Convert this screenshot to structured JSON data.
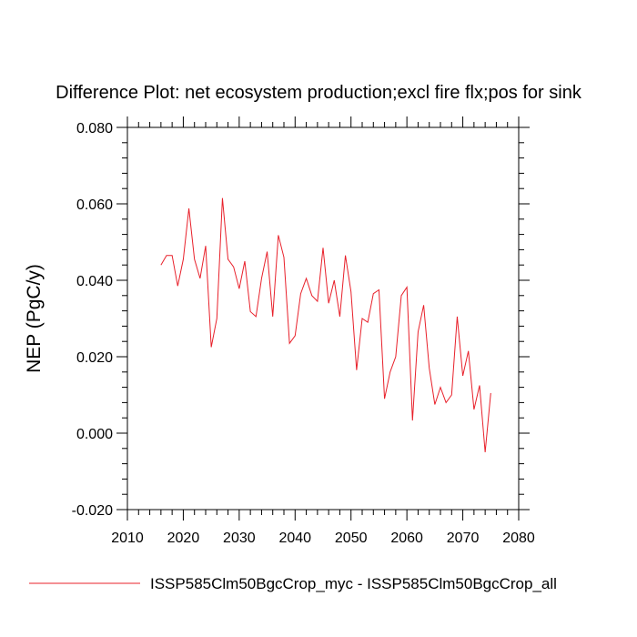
{
  "chart_data": {
    "type": "line",
    "title": "Difference Plot: net ecosystem production;excl fire flx;pos for sink",
    "xlabel": "",
    "ylabel": "NEP  (PgC/y)",
    "xlim": [
      2010,
      2080
    ],
    "ylim": [
      -0.02,
      0.08
    ],
    "x_ticks": [
      "2010",
      "2020",
      "2030",
      "2040",
      "2050",
      "2060",
      "2070",
      "2080"
    ],
    "y_ticks": [
      "-0.020",
      "0.000",
      "0.020",
      "0.040",
      "0.060",
      "0.080"
    ],
    "grid": false,
    "legend_position": "bottom",
    "series": [
      {
        "name": "ISSP585Clm50BgcCrop_myc - ISSP585Clm50BgcCrop_all",
        "color": "#e8202a",
        "x": [
          2016,
          2017,
          2018,
          2019,
          2020,
          2021,
          2022,
          2023,
          2024,
          2025,
          2026,
          2027,
          2028,
          2029,
          2030,
          2031,
          2032,
          2033,
          2034,
          2035,
          2036,
          2037,
          2038,
          2039,
          2040,
          2041,
          2042,
          2043,
          2044,
          2045,
          2046,
          2047,
          2048,
          2049,
          2050,
          2051,
          2052,
          2053,
          2054,
          2055,
          2056,
          2057,
          2058,
          2059,
          2060,
          2061,
          2062,
          2063,
          2064,
          2065,
          2066,
          2067,
          2068,
          2069,
          2070,
          2071,
          2072,
          2073,
          2074,
          2075
        ],
        "values": [
          0.044,
          0.0465,
          0.0465,
          0.0385,
          0.0455,
          0.0588,
          0.0455,
          0.0405,
          0.049,
          0.0225,
          0.03,
          0.0615,
          0.0455,
          0.0435,
          0.0378,
          0.045,
          0.0318,
          0.0305,
          0.0405,
          0.0475,
          0.0305,
          0.0518,
          0.046,
          0.0235,
          0.0255,
          0.0365,
          0.0405,
          0.036,
          0.0345,
          0.0485,
          0.034,
          0.04,
          0.0305,
          0.0465,
          0.037,
          0.0165,
          0.03,
          0.029,
          0.0365,
          0.0375,
          0.009,
          0.016,
          0.02,
          0.036,
          0.0382,
          0.0033,
          0.0265,
          0.0335,
          0.017,
          0.0075,
          0.012,
          0.008,
          0.01,
          0.0305,
          0.015,
          0.0215,
          0.0062,
          0.0125,
          -0.005,
          0.0105
        ]
      }
    ]
  },
  "legend": {
    "items": [
      {
        "label": "ISSP585Clm50BgcCrop_myc - ISSP585Clm50BgcCrop_all",
        "color": "#e8202a"
      }
    ]
  }
}
